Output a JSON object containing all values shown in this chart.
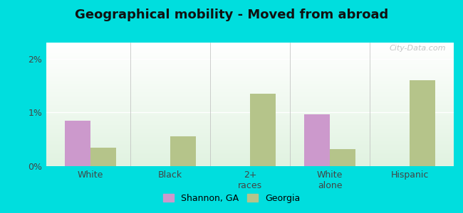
{
  "title": "Geographical mobility - Moved from abroad",
  "categories": [
    "White",
    "Black",
    "2+\nraces",
    "White\nalone",
    "Hispanic"
  ],
  "shannon_values": [
    0.85,
    0.0,
    0.0,
    0.97,
    0.0
  ],
  "georgia_values": [
    0.35,
    0.55,
    1.35,
    0.32,
    1.6
  ],
  "shannon_color": "#cc99cc",
  "georgia_color": "#b5c48a",
  "bg_outer": "#00dede",
  "yticks": [
    0,
    1,
    2
  ],
  "ylim": [
    0,
    2.3
  ],
  "bar_width": 0.32,
  "title_fontsize": 13,
  "tick_fontsize": 9,
  "legend_fontsize": 9,
  "watermark": "City-Data.com",
  "ylabel_labels": [
    "0%",
    "1%",
    "2%"
  ]
}
